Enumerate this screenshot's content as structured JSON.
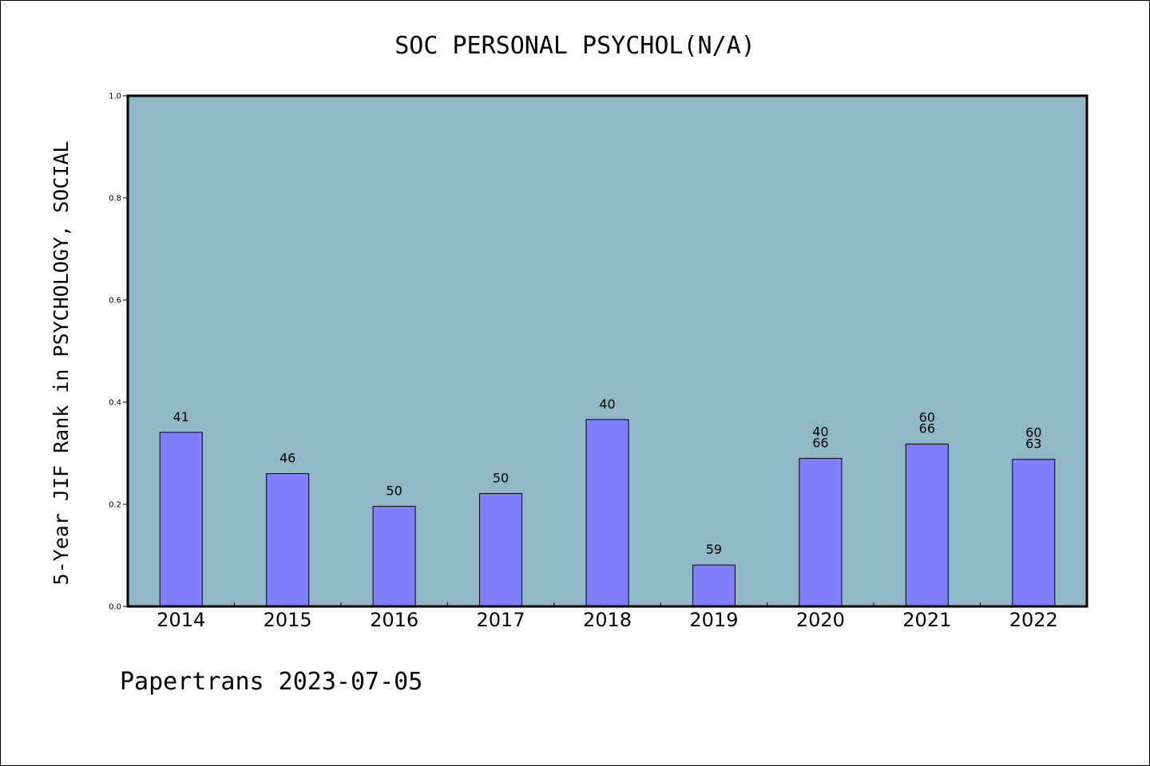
{
  "chart_data": {
    "type": "bar",
    "title": "SOC PERSONAL PSYCHOL(N/A)",
    "xlabel": "",
    "ylabel": "5-Year JIF Rank in PSYCHOLOGY, SOCIAL",
    "ylim": [
      0.0,
      1.0
    ],
    "yticks": [
      "0.0",
      "0.2",
      "0.4",
      "0.6",
      "0.8",
      "1.0"
    ],
    "categories": [
      "2014",
      "2015",
      "2016",
      "2017",
      "2018",
      "2019",
      "2020",
      "2021",
      "2022"
    ],
    "values": [
      0.341,
      0.26,
      0.196,
      0.221,
      0.366,
      0.081,
      0.29,
      0.318,
      0.288
    ],
    "data_labels": [
      [
        "41"
      ],
      [
        "46"
      ],
      [
        "50"
      ],
      [
        "50"
      ],
      [
        "40"
      ],
      [
        "59"
      ],
      [
        "40",
        "66"
      ],
      [
        "60",
        "66"
      ],
      [
        "60",
        "63"
      ]
    ],
    "grid": false,
    "colors": {
      "plot_background": "#90b8c6",
      "bar_fill": "#8080ff",
      "bar_stroke": "#000000",
      "axis": "#000000"
    }
  },
  "footer": {
    "text": "Papertrans 2023-07-05"
  }
}
